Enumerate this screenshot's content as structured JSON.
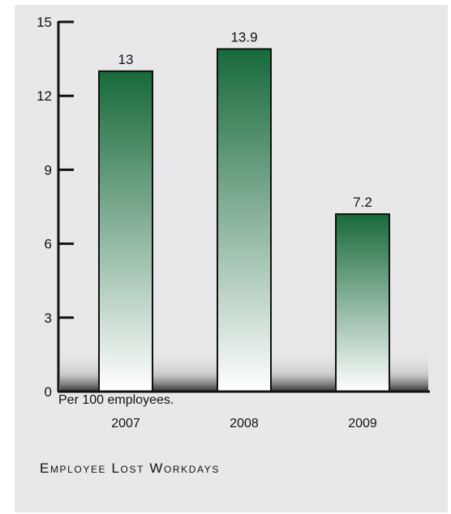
{
  "chart_data": {
    "type": "bar",
    "categories": [
      "2007",
      "2008",
      "2009"
    ],
    "values": [
      13,
      13.9,
      7.2
    ],
    "data_labels": [
      "13",
      "13.9",
      "7.2"
    ],
    "y_ticks": [
      "0",
      "3",
      "6",
      "9",
      "12",
      "15"
    ],
    "ylim": [
      0,
      15
    ],
    "note": "Per 100 employees.",
    "caption": "Employee Lost Workdays",
    "bar_color_top": "#17693a",
    "bar_color_bottom": "#ffffff",
    "grid": false
  }
}
